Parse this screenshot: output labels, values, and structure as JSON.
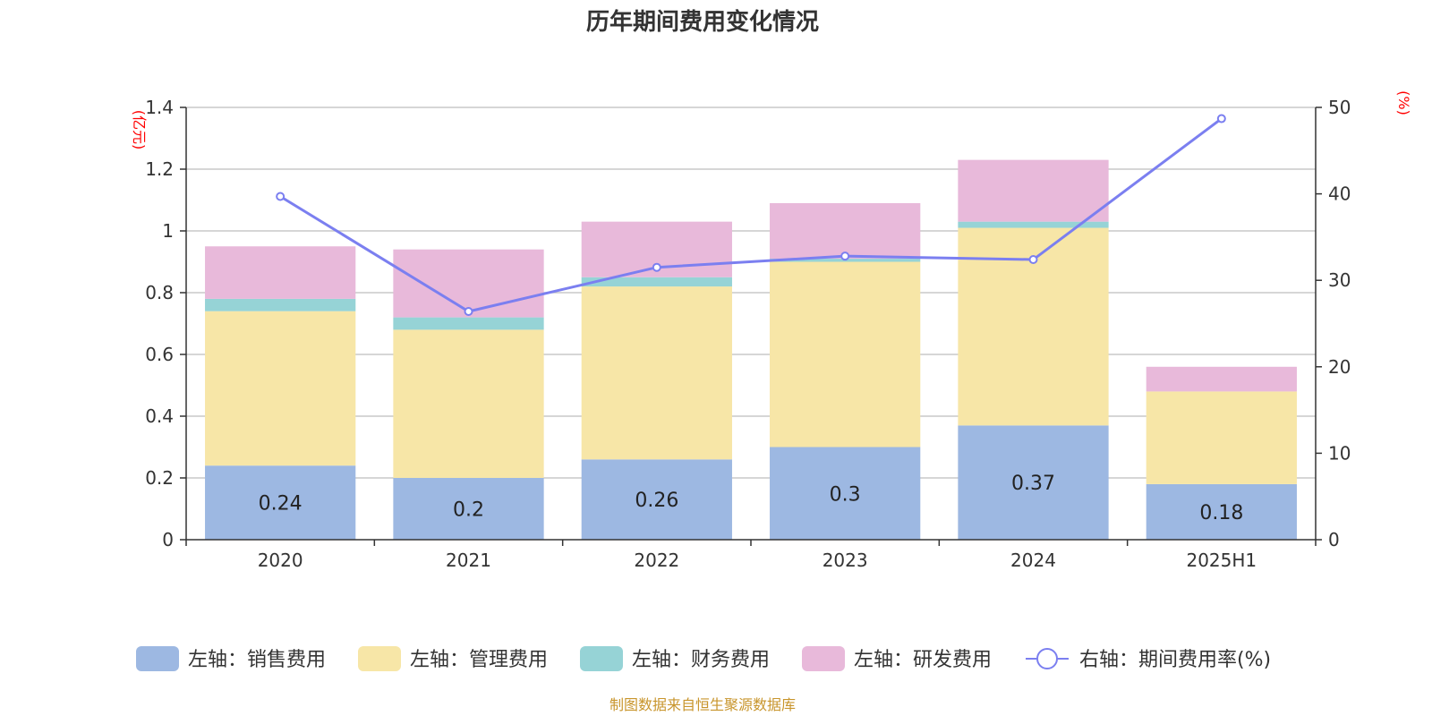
{
  "chart_data": {
    "type": "bar",
    "title": "历年期间费用变化情况",
    "categories": [
      "2020",
      "2021",
      "2022",
      "2023",
      "2024",
      "2025H1"
    ],
    "left_axis": {
      "unit": "(亿元)",
      "ylim": [
        0,
        1.4
      ],
      "ticks": [
        "0",
        "0.2",
        "0.4",
        "0.6",
        "0.8",
        "1",
        "1.2",
        "1.4"
      ]
    },
    "right_axis": {
      "unit": "(%)",
      "ylim": [
        0,
        50
      ],
      "ticks": [
        "0",
        "10",
        "20",
        "30",
        "40",
        "50"
      ]
    },
    "series": [
      {
        "name": "左轴：销售费用",
        "axis": "left",
        "kind": "bar",
        "color": "#9db8e2",
        "values": [
          0.24,
          0.2,
          0.26,
          0.3,
          0.37,
          0.18
        ],
        "labels": [
          "0.24",
          "0.2",
          "0.26",
          "0.3",
          "0.37",
          "0.18"
        ]
      },
      {
        "name": "左轴：管理费用",
        "axis": "left",
        "kind": "bar",
        "color": "#f7e6a7",
        "values": [
          0.5,
          0.48,
          0.56,
          0.6,
          0.64,
          0.3
        ]
      },
      {
        "name": "左轴：财务费用",
        "axis": "left",
        "kind": "bar",
        "color": "#96d3d6",
        "values": [
          0.04,
          0.04,
          0.03,
          0.01,
          0.02,
          0
        ]
      },
      {
        "name": "左轴：研发费用",
        "axis": "left",
        "kind": "bar",
        "color": "#e8b9da",
        "values": [
          0.17,
          0.22,
          0.18,
          0.18,
          0.2,
          0.08
        ]
      },
      {
        "name": "右轴：期间费用率(%)",
        "axis": "right",
        "kind": "line",
        "color": "#7b7ff0",
        "values": [
          39.7,
          26.4,
          31.5,
          32.8,
          32.4,
          48.7
        ]
      }
    ],
    "grid": true,
    "legend": "bottom",
    "source": "制图数据来自恒生聚源数据库"
  }
}
